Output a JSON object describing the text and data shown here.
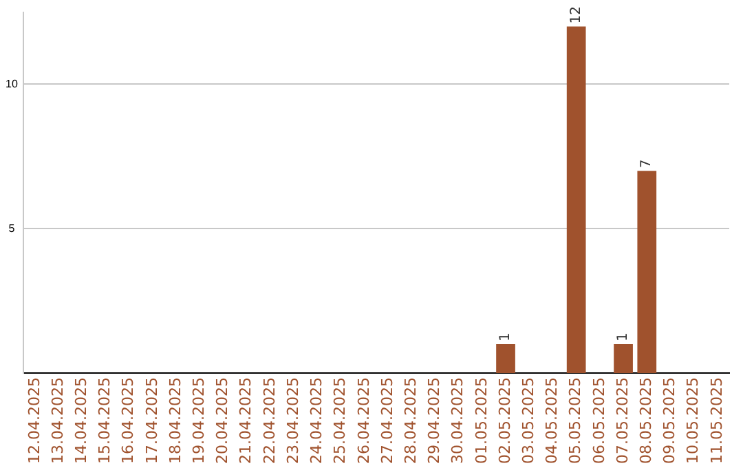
{
  "chart_data": {
    "type": "bar",
    "categories": [
      "12.04.2025",
      "13.04.2025",
      "14.04.2025",
      "15.04.2025",
      "16.04.2025",
      "17.04.2025",
      "18.04.2025",
      "19.04.2025",
      "20.04.2025",
      "21.04.2025",
      "22.04.2025",
      "23.04.2025",
      "24.04.2025",
      "25.04.2025",
      "26.04.2025",
      "27.04.2025",
      "28.04.2025",
      "29.04.2025",
      "30.04.2025",
      "01.05.2025",
      "02.05.2025",
      "03.05.2025",
      "04.05.2025",
      "05.05.2025",
      "06.05.2025",
      "07.05.2025",
      "08.05.2025",
      "09.05.2025",
      "10.05.2025",
      "11.05.2025"
    ],
    "values": [
      0,
      0,
      0,
      0,
      0,
      0,
      0,
      0,
      0,
      0,
      0,
      0,
      0,
      0,
      0,
      0,
      0,
      0,
      0,
      0,
      1,
      0,
      0,
      12,
      0,
      1,
      7,
      0,
      0,
      0
    ],
    "value_labels": [
      null,
      null,
      null,
      null,
      null,
      null,
      null,
      null,
      null,
      null,
      null,
      null,
      null,
      null,
      null,
      null,
      null,
      null,
      null,
      null,
      "1",
      null,
      null,
      "12",
      null,
      "1",
      "7",
      null,
      null,
      null
    ],
    "color": "#a0522d",
    "ylim": [
      0,
      12.5
    ],
    "yticks": [
      5,
      10
    ],
    "grid": "y",
    "legend": false
  }
}
